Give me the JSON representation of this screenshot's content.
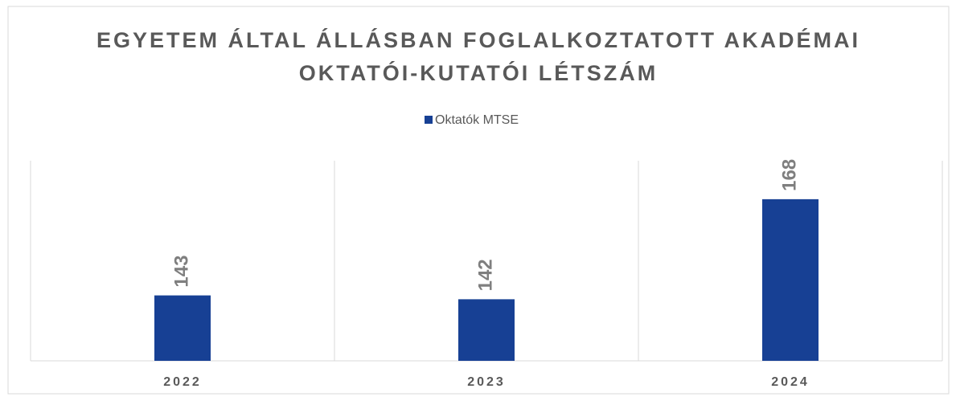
{
  "chart_data": {
    "type": "bar",
    "title": "EGYETEM ÁLTAL ÁLLÁSBAN FOGLALKOZTATOTT AKADÉMAI OKTATÓI-KUTATÓI LÉTSZÁM",
    "categories": [
      "2022",
      "2023",
      "2024"
    ],
    "series": [
      {
        "name": "Oktatók MTSE",
        "color": "#174094",
        "values": [
          143,
          142,
          168
        ]
      }
    ],
    "ylim": [
      126,
      178
    ],
    "legend": "top"
  }
}
